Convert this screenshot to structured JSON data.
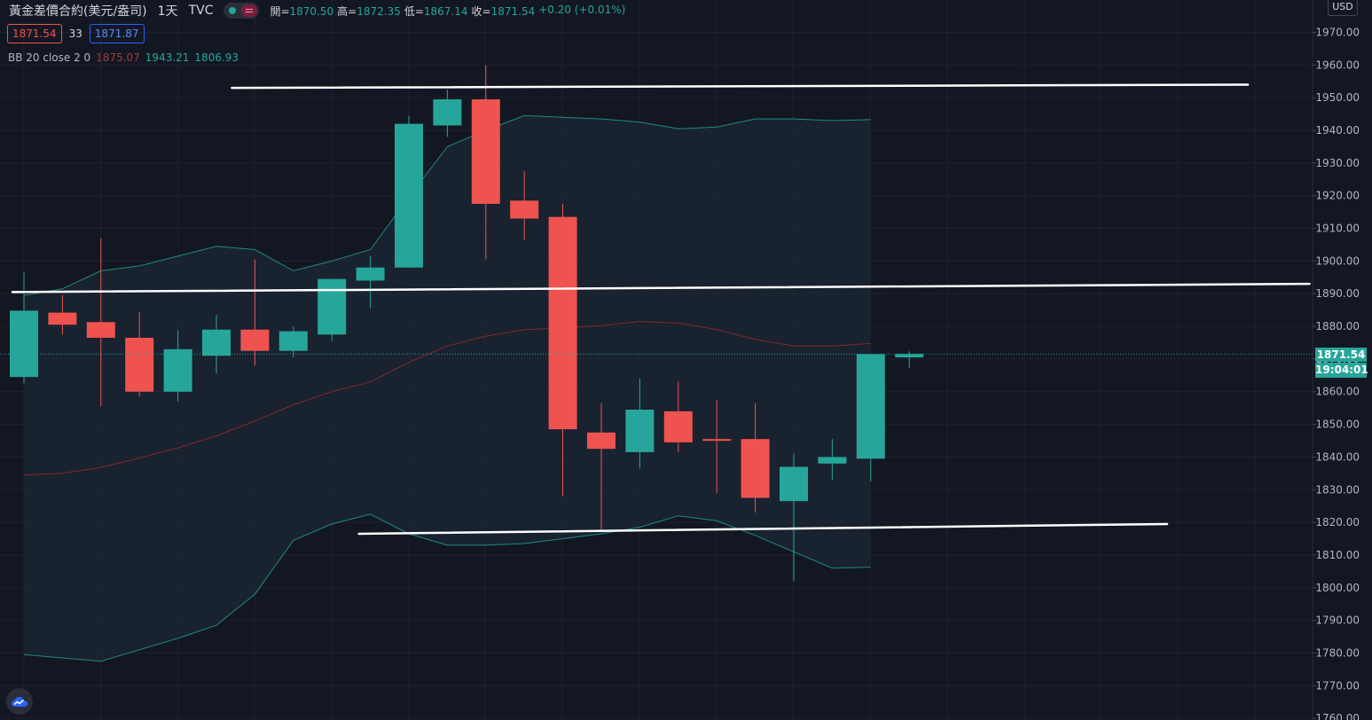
{
  "header": {
    "symbol": "黃金差價合約(美元/盎司)",
    "interval": "1天",
    "source": "TVC",
    "ohlc": [
      {
        "k": "開=",
        "v": "1870.50"
      },
      {
        "k": "高=",
        "v": "1872.35"
      },
      {
        "k": "低=",
        "v": "1867.14"
      },
      {
        "k": "收=",
        "v": "1871.54"
      },
      {
        "k": "",
        "v": "+0.20 (+0.01%)"
      }
    ]
  },
  "trade": {
    "sell_price": "1871.54",
    "spread": "33",
    "buy_price": "1871.87"
  },
  "indicator": {
    "label": "BB 20 close 2 0",
    "basis": "1875.07",
    "upper": "1943.21",
    "lower": "1806.93"
  },
  "price_axis": {
    "currency": "USD"
  },
  "price_label": "1871.54",
  "countdown": "19:04:01",
  "colors": {
    "up": "#26a69a",
    "down": "#ef5350",
    "background": "#131722",
    "bb_basis": "#7d2a2a",
    "bb_band": "#1f8a80",
    "trendline": "#ffffff"
  },
  "icons": {
    "logo": "tradingview-cloud-icon",
    "toggle": "visibility-toggle-icon"
  },
  "chart_data": {
    "type": "candlestick",
    "y_range": [
      1760,
      1975
    ],
    "y_ticks": [
      "1760.00",
      "1770.00",
      "1780.00",
      "1790.00",
      "1800.00",
      "1810.00",
      "1820.00",
      "1830.00",
      "1840.00",
      "1850.00",
      "1860.00",
      "1870.00",
      "1880.00",
      "1890.00",
      "1900.00",
      "1910.00",
      "1920.00",
      "1930.00",
      "1940.00",
      "1950.00",
      "1960.00",
      "1970.00"
    ],
    "candles": [
      {
        "o": 1864.5,
        "h": 1896.5,
        "l": 1862.5,
        "c": 1884.8
      },
      {
        "o": 1884.2,
        "h": 1889.5,
        "l": 1877.5,
        "c": 1880.5
      },
      {
        "o": 1881.3,
        "h": 1907.0,
        "l": 1855.5,
        "c": 1876.5
      },
      {
        "o": 1876.5,
        "h": 1884.5,
        "l": 1858.5,
        "c": 1860.0
      },
      {
        "o": 1860.0,
        "h": 1878.8,
        "l": 1857.0,
        "c": 1873.0
      },
      {
        "o": 1871.0,
        "h": 1883.5,
        "l": 1865.5,
        "c": 1879.0
      },
      {
        "o": 1879.0,
        "h": 1900.5,
        "l": 1868.0,
        "c": 1872.5
      },
      {
        "o": 1872.5,
        "h": 1880.0,
        "l": 1870.5,
        "c": 1878.5
      },
      {
        "o": 1877.5,
        "h": 1894.5,
        "l": 1875.5,
        "c": 1894.5
      },
      {
        "o": 1894.0,
        "h": 1901.5,
        "l": 1885.5,
        "c": 1898.0
      },
      {
        "o": 1898.0,
        "h": 1944.5,
        "l": 1898.0,
        "c": 1942.0
      },
      {
        "o": 1941.5,
        "h": 1952.5,
        "l": 1938.0,
        "c": 1949.5
      },
      {
        "o": 1949.5,
        "h": 1960.0,
        "l": 1900.5,
        "c": 1917.5
      },
      {
        "o": 1918.5,
        "h": 1927.5,
        "l": 1906.5,
        "c": 1913.0
      },
      {
        "o": 1913.5,
        "h": 1917.5,
        "l": 1828.0,
        "c": 1848.5
      },
      {
        "o": 1847.5,
        "h": 1856.5,
        "l": 1817.0,
        "c": 1842.5
      },
      {
        "o": 1841.5,
        "h": 1864.0,
        "l": 1836.5,
        "c": 1854.5
      },
      {
        "o": 1854.0,
        "h": 1863.0,
        "l": 1841.5,
        "c": 1844.5
      },
      {
        "o": 1845.5,
        "h": 1857.5,
        "l": 1829.0,
        "c": 1845.0
      },
      {
        "o": 1845.5,
        "h": 1856.5,
        "l": 1823.0,
        "c": 1827.5
      },
      {
        "o": 1826.5,
        "h": 1841.0,
        "l": 1802.0,
        "c": 1837.0
      },
      {
        "o": 1838.0,
        "h": 1845.5,
        "l": 1833.0,
        "c": 1840.0
      },
      {
        "o": 1839.5,
        "h": 1871.5,
        "l": 1832.5,
        "c": 1871.5
      },
      {
        "o": 1870.5,
        "h": 1872.35,
        "l": 1867.14,
        "c": 1871.54
      }
    ],
    "bb_basis": [
      1834.5,
      1835.0,
      1836.8,
      1839.7,
      1842.8,
      1846.5,
      1851.0,
      1856.0,
      1860.0,
      1863.0,
      1869.0,
      1874.0,
      1877.0,
      1879.0,
      1879.5,
      1880.2,
      1881.5,
      1881.0,
      1879.0,
      1876.0,
      1874.0,
      1874.0,
      1874.8
    ],
    "bb_upper": [
      1889.5,
      1891.5,
      1897.0,
      1898.5,
      1901.5,
      1904.5,
      1903.5,
      1897.0,
      1900.0,
      1903.5,
      1919.5,
      1935.0,
      1940.0,
      1944.5,
      1944.0,
      1943.5,
      1942.5,
      1940.5,
      1941.0,
      1943.5,
      1943.5,
      1943.0,
      1943.3
    ],
    "bb_lower": [
      1779.5,
      1778.5,
      1777.5,
      1781.0,
      1784.5,
      1788.5,
      1798.0,
      1814.5,
      1819.5,
      1822.5,
      1816.5,
      1813.0,
      1813.0,
      1813.5,
      1815.0,
      1816.5,
      1818.5,
      1822.0,
      1820.5,
      1816.0,
      1811.0,
      1806.0,
      1806.3
    ],
    "trendlines": [
      {
        "x1": 5.4,
        "y1": 1953.0,
        "x2": 31.8,
        "y2": 1954.0
      },
      {
        "x1": -0.3,
        "y1": 1890.5,
        "x2": 33.4,
        "y2": 1893.0
      },
      {
        "x1": 8.7,
        "y1": 1816.5,
        "x2": 29.7,
        "y2": 1819.5
      }
    ]
  }
}
